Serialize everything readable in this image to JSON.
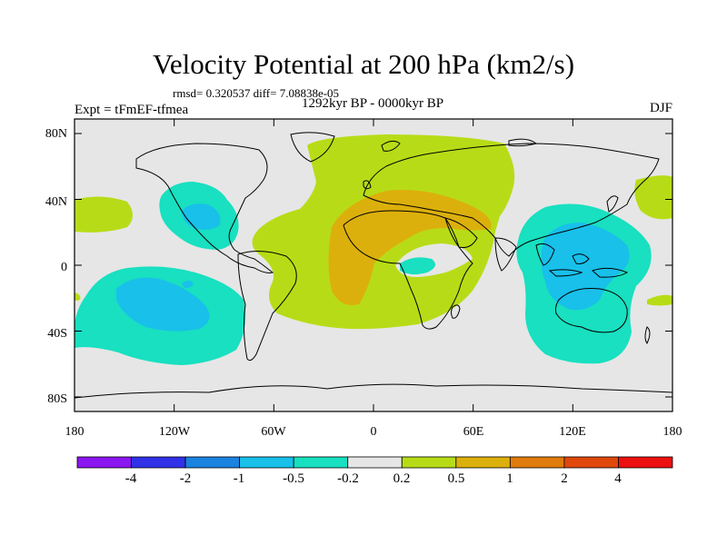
{
  "title": "Velocity Potential at 200 hPa (km2/s)",
  "stats": "rmsd= 0.320537 diff= 7.08838e-05",
  "subtitle": "1292kyr BP - 0000kyr BP",
  "experiment": "Expt = tFmEF-tfmea",
  "season": "DJF",
  "map": {
    "y_labels": [
      "80N",
      "40N",
      "0",
      "40S",
      "80S"
    ],
    "x_labels": [
      "180",
      "120W",
      "60W",
      "0",
      "60E",
      "120E",
      "180"
    ],
    "background_color": "#e6e6e6"
  },
  "colorbar": {
    "labels": [
      "-4",
      "-2",
      "-1",
      "-0.5",
      "-0.2",
      "0.2",
      "0.5",
      "1",
      "2",
      "4"
    ],
    "colors": [
      "#8a16f0",
      "#3131e8",
      "#1a83e0",
      "#18c0ea",
      "#18e0c0",
      "#e6e6e6",
      "#b7dc17",
      "#dcb00c",
      "#e07c0c",
      "#e0480c",
      "#ec1010"
    ]
  },
  "colors": {
    "neg_light": "#18e0c0",
    "neg_medium": "#18c0ea",
    "pos_light": "#b7dc17",
    "pos_medium": "#dcb00c"
  }
}
